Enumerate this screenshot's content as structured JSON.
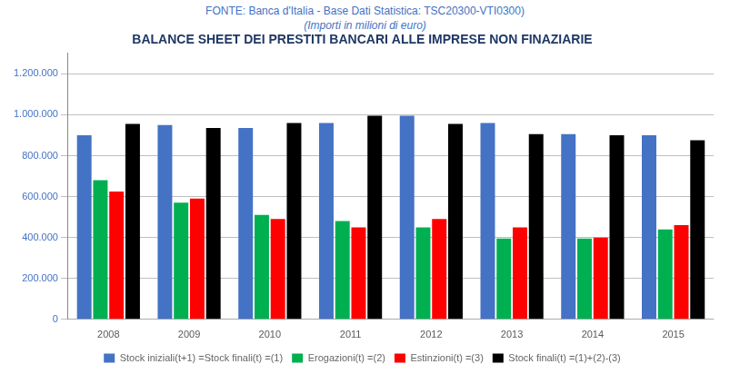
{
  "chart_data": {
    "type": "bar",
    "title": "BALANCE SHEET DEI PRESTITI BANCARI ALLE IMPRESE NON FINAZIARIE",
    "subtitle": [
      "FONTE: Banca d'Italia - Base Dati Statistica: TSC20300-VTI0300)",
      "(Importi in milioni di euro)"
    ],
    "categories": [
      "2008",
      "2009",
      "2010",
      "2011",
      "2012",
      "2013",
      "2014",
      "2015"
    ],
    "series": [
      {
        "name": "Stock iniziali(t+1) =Stock finali(t) =(1)",
        "color": "#4472C4",
        "values": [
          900000,
          950000,
          935000,
          960000,
          995000,
          960000,
          905000,
          900000
        ]
      },
      {
        "name": "Erogazioni(t) =(2)",
        "color": "#00B050",
        "values": [
          680000,
          570000,
          510000,
          480000,
          450000,
          395000,
          395000,
          440000
        ]
      },
      {
        "name": "Estinzioni(t) =(3)",
        "color": "#FF0000",
        "values": [
          625000,
          590000,
          490000,
          450000,
          490000,
          450000,
          400000,
          460000
        ]
      },
      {
        "name": "Stock finali(t) =(1)+(2)-(3)",
        "color": "#000000",
        "values": [
          955000,
          935000,
          960000,
          995000,
          955000,
          905000,
          900000,
          875000
        ]
      }
    ],
    "ylim": [
      0,
      1300000
    ],
    "yticks": [
      0,
      {
        "value": 200000,
        "label": "200.000"
      },
      {
        "value": 400000,
        "label": "400.000"
      },
      {
        "value": 600000,
        "label": "600.000"
      },
      {
        "value": 800000,
        "label": "800.000"
      },
      {
        "value": 1000000,
        "label": "1.000.000"
      },
      {
        "value": 1200000,
        "label": "1.200.000"
      }
    ],
    "grid": true,
    "legend": "bottom"
  }
}
